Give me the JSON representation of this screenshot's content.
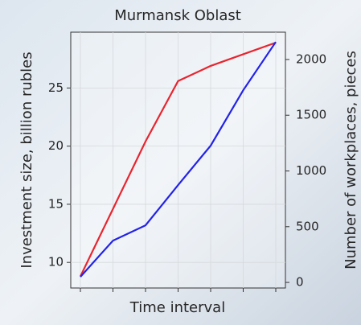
{
  "chart_data": {
    "type": "line",
    "title": "Murmansk Oblast",
    "x_label": "Time interval",
    "y_label": "Investment size, billion rubles",
    "y2_label": "Number of workplaces, pieces",
    "categories": [
      null,
      null,
      null,
      null,
      null,
      null,
      null
    ],
    "series": [
      {
        "color": "#e8252f",
        "values": [
          8.8,
          14.6,
          20.4,
          25.6,
          26.9,
          27.9,
          28.9
        ]
      },
      {
        "color": "#2323e8",
        "axis": "y2",
        "values": [
          50,
          375,
          512,
          873,
          1227,
          1724,
          2157
        ]
      }
    ],
    "ylim": [
      7.8,
      29.8
    ],
    "yticks": [
      10,
      15,
      20,
      25
    ],
    "y2lim": [
      -50,
      2245
    ],
    "y2ticks": [
      0,
      500,
      1000,
      1500,
      2000
    ],
    "grid": true
  }
}
